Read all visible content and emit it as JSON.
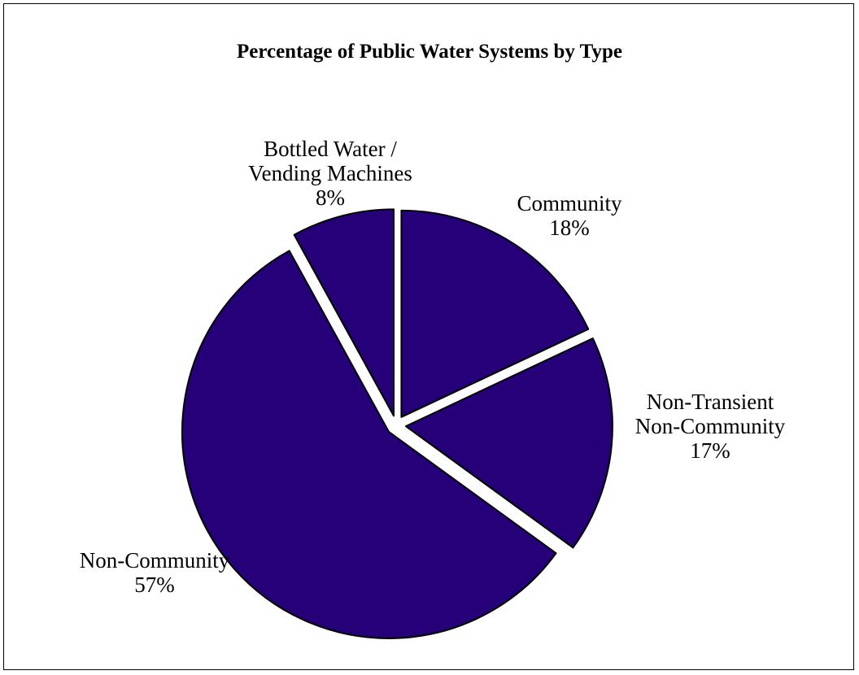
{
  "colors": {
    "slice_fill": "#260078",
    "slice_stroke": "#000000",
    "background": "#ffffff"
  },
  "chart_data": {
    "type": "pie",
    "title": "Percentage of Public Water Systems by Type",
    "slices": [
      {
        "label_lines": [
          "Community"
        ],
        "value": 18,
        "value_label": "18%"
      },
      {
        "label_lines": [
          "Non-Transient",
          "Non-Community"
        ],
        "value": 17,
        "value_label": "17%"
      },
      {
        "label_lines": [
          "Non-Community"
        ],
        "value": 57,
        "value_label": "57%"
      },
      {
        "label_lines": [
          "Bottled Water /",
          "Vending Machines"
        ],
        "value": 8,
        "value_label": "8%"
      }
    ],
    "start": "top",
    "direction": "clockwise",
    "all_slices_exploded": true
  }
}
